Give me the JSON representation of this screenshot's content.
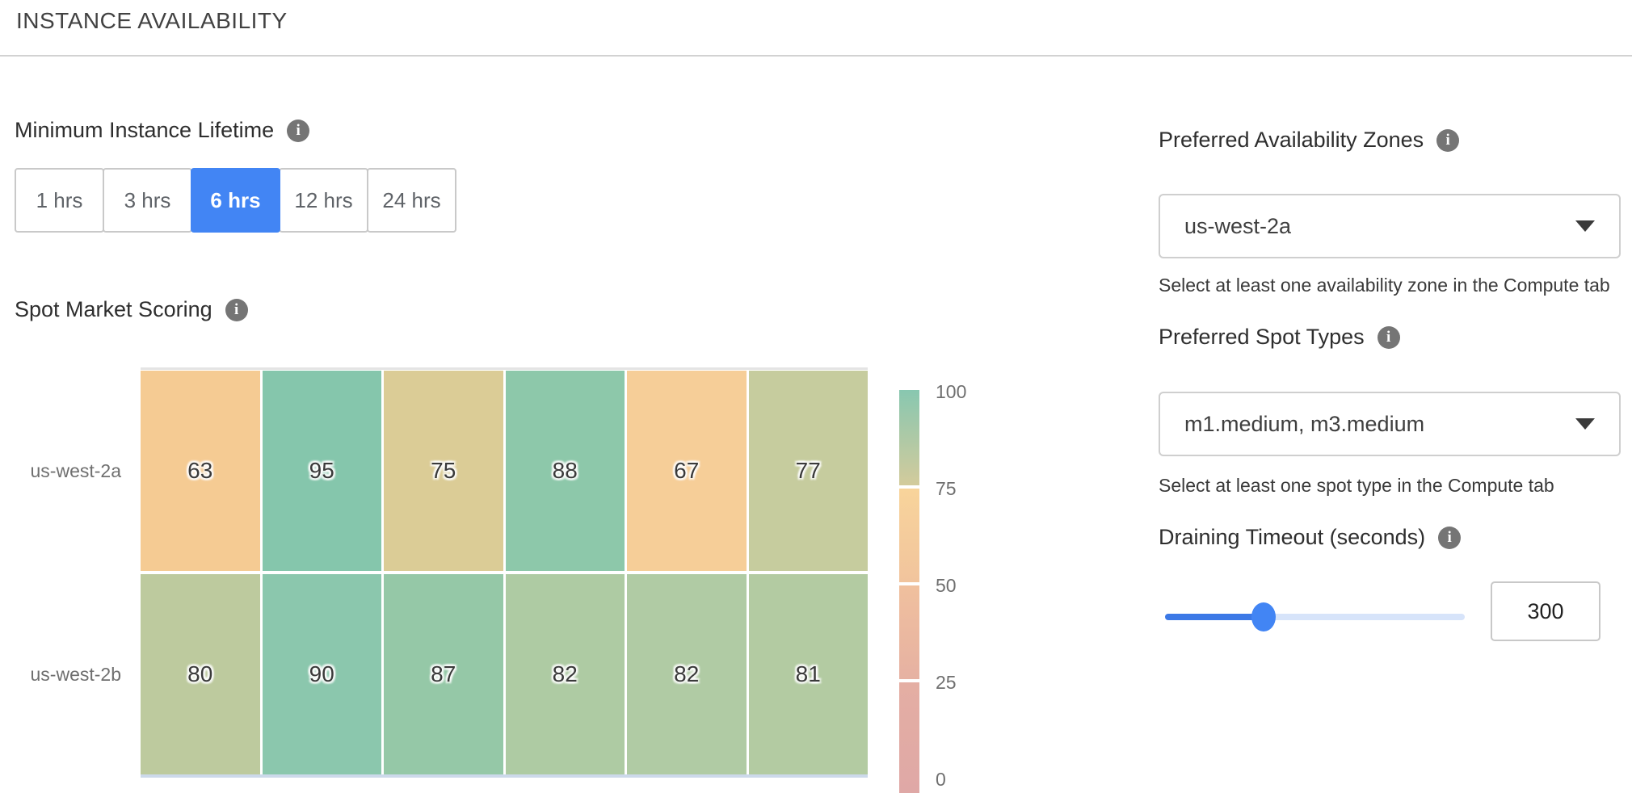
{
  "page": {
    "title": "INSTANCE AVAILABILITY"
  },
  "lifetime": {
    "label": "Minimum Instance Lifetime",
    "selected": "6 hrs",
    "options": [
      {
        "label": "1 hrs",
        "selected": false
      },
      {
        "label": "3 hrs",
        "selected": false
      },
      {
        "label": "6 hrs",
        "selected": true
      },
      {
        "label": "12 hrs",
        "selected": false
      },
      {
        "label": "24 hrs",
        "selected": false
      }
    ]
  },
  "scoring": {
    "label": "Spot Market Scoring"
  },
  "chart_data": {
    "type": "heatmap",
    "title": "Spot Market Scoring",
    "rows": [
      "us-west-2a",
      "us-west-2b"
    ],
    "columns_count": 6,
    "values": [
      [
        63,
        95,
        75,
        88,
        67,
        77
      ],
      [
        80,
        90,
        87,
        82,
        82,
        81
      ]
    ],
    "cell_colors": [
      [
        "#F5CB93",
        "#85C6AC",
        "#DBCC96",
        "#8DC8AA",
        "#F6CE98",
        "#C6CC9E"
      ],
      [
        "#BDCA9E",
        "#8BC7AD",
        "#95C8A7",
        "#AECBA3",
        "#B0CBA4",
        "#B3CBA2"
      ]
    ],
    "value_range": [
      0,
      100
    ],
    "colorbar": {
      "ticks": [
        "100",
        "75",
        "50",
        "25",
        "0"
      ],
      "segments": [
        {
          "from": "#88C7B0",
          "to": "#D3CB9C"
        },
        {
          "from": "#F8D49B",
          "to": "#F1C49D"
        },
        {
          "from": "#F0C09E",
          "to": "#E6B1A2"
        },
        {
          "from": "#E4AEA3",
          "to": "#DFA8A6"
        }
      ]
    },
    "legend_position": "right",
    "grid": false
  },
  "zones": {
    "label": "Preferred Availability Zones",
    "value": "us-west-2a",
    "helper": "Select at least one availability zone in the Compute tab"
  },
  "spot_types": {
    "label": "Preferred Spot Types",
    "value": "m1.medium, m3.medium",
    "helper": "Select at least one spot type in the Compute tab"
  },
  "draining": {
    "label": "Draining Timeout (seconds)",
    "value": "300",
    "slider_percent": 33
  },
  "colors": {
    "accent_blue": "#4285f4",
    "slider_track": "#d7e4fa",
    "info_icon_gray": "#757575"
  }
}
